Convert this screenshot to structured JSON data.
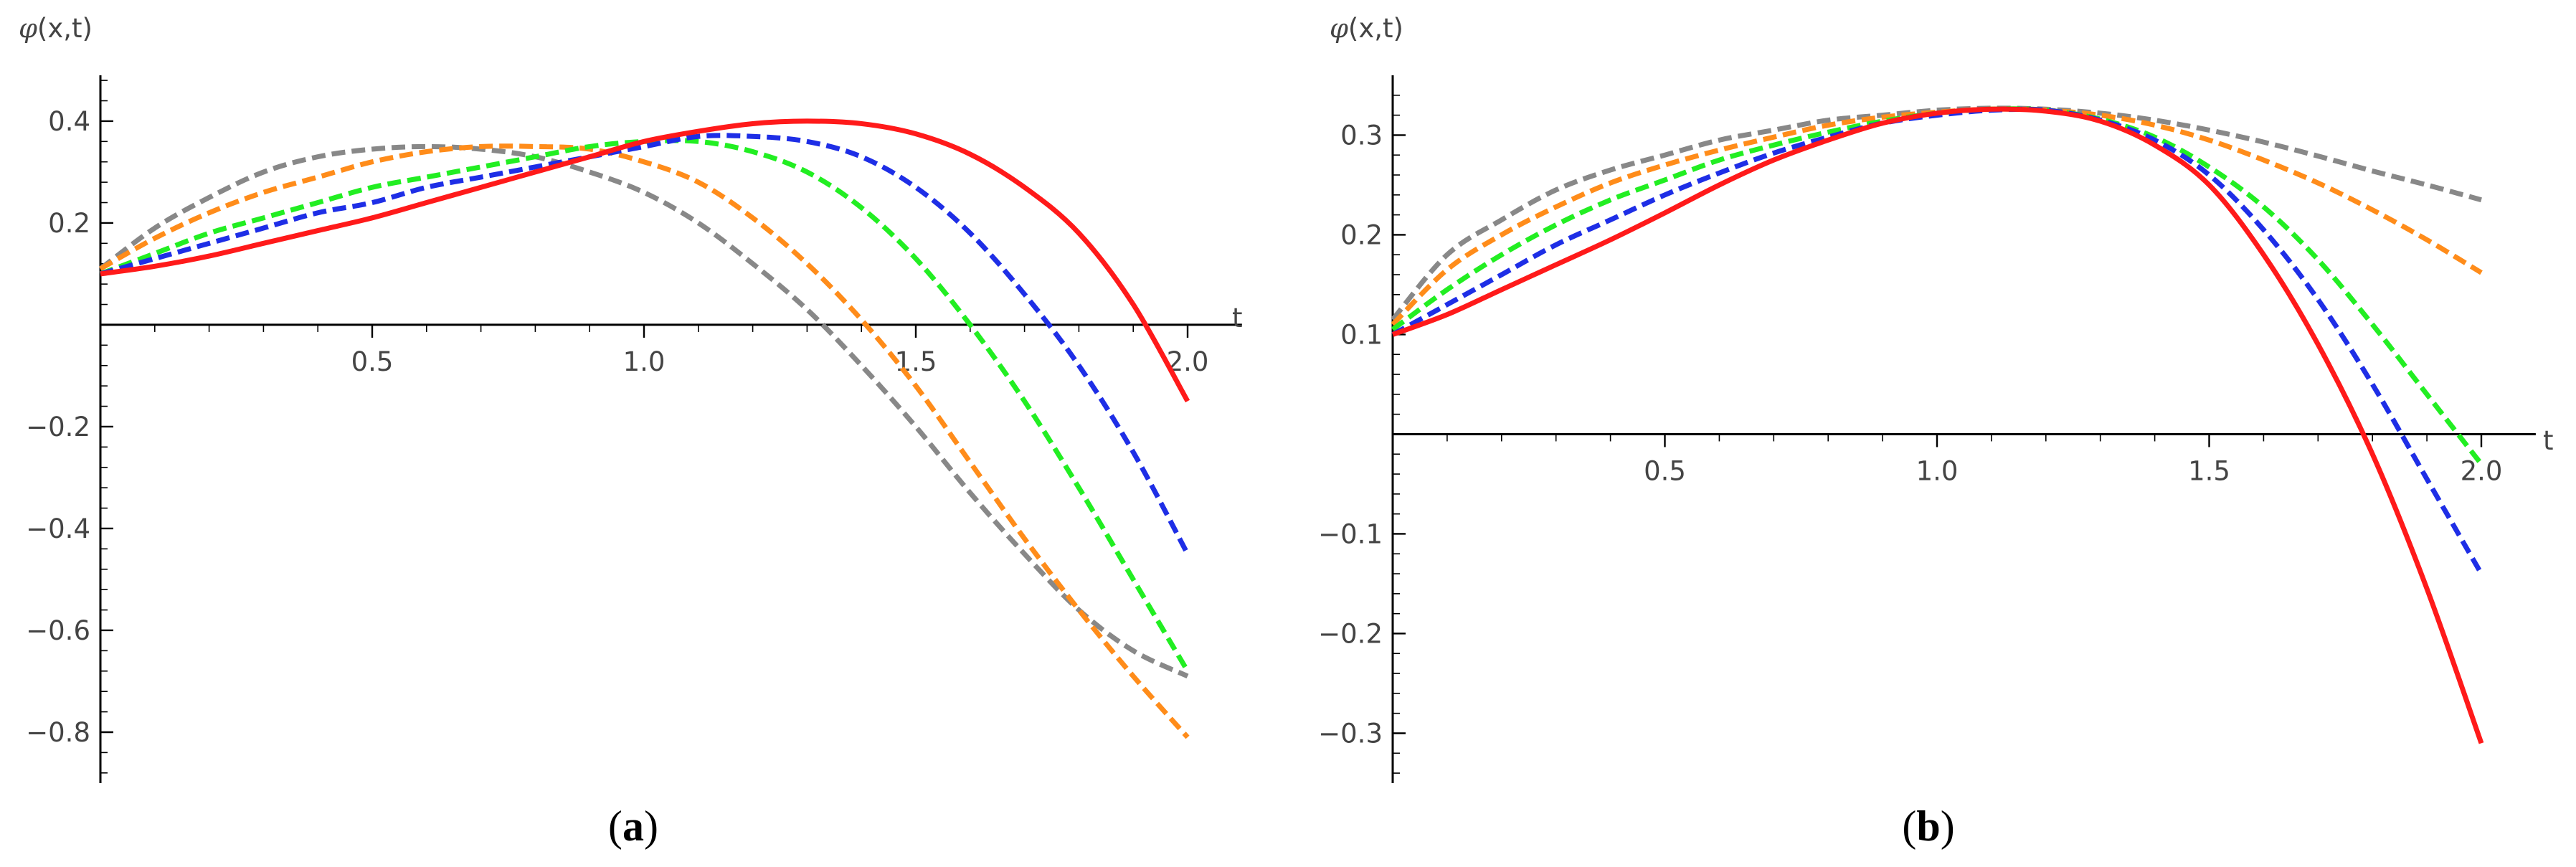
{
  "chart_data": [
    {
      "type": "line",
      "panel_label": "a",
      "xlabel": "t",
      "ylabel": "φ(x,t)",
      "xlim": [
        0,
        2.1
      ],
      "ylim": [
        -0.9,
        0.49
      ],
      "x_ticks": [
        "0.5",
        "1.0",
        "1.5",
        "2.0"
      ],
      "y_ticks": [
        "0.4",
        "0.2",
        "−0.2",
        "−0.4",
        "−0.6",
        "−0.8"
      ],
      "series": [
        {
          "color": "#888888",
          "style": "dashed",
          "x": [
            0,
            0.1,
            0.2,
            0.3,
            0.4,
            0.5,
            0.6,
            0.7,
            0.8,
            0.9,
            1.0,
            1.1,
            1.2,
            1.3,
            1.4,
            1.5,
            1.6,
            1.7,
            1.8,
            1.9,
            2.0
          ],
          "y": [
            0.11,
            0.19,
            0.25,
            0.3,
            0.33,
            0.345,
            0.35,
            0.345,
            0.33,
            0.3,
            0.26,
            0.2,
            0.12,
            0.03,
            -0.08,
            -0.2,
            -0.33,
            -0.45,
            -0.56,
            -0.64,
            -0.69
          ]
        },
        {
          "color": "#FF8C1A",
          "style": "dashed",
          "x": [
            0,
            0.1,
            0.2,
            0.3,
            0.4,
            0.5,
            0.6,
            0.7,
            0.8,
            0.9,
            1.0,
            1.1,
            1.2,
            1.3,
            1.4,
            1.5,
            1.6,
            1.7,
            1.8,
            1.9,
            2.0
          ],
          "y": [
            0.11,
            0.17,
            0.22,
            0.26,
            0.29,
            0.32,
            0.34,
            0.35,
            0.35,
            0.345,
            0.32,
            0.28,
            0.21,
            0.12,
            0.01,
            -0.12,
            -0.27,
            -0.42,
            -0.56,
            -0.69,
            -0.81
          ]
        },
        {
          "color": "#22EE22",
          "style": "dashed",
          "x": [
            0,
            0.1,
            0.2,
            0.3,
            0.4,
            0.5,
            0.6,
            0.7,
            0.8,
            0.9,
            1.0,
            1.1,
            1.2,
            1.3,
            1.4,
            1.5,
            1.6,
            1.7,
            1.8,
            1.9,
            2.0
          ],
          "y": [
            0.1,
            0.14,
            0.18,
            0.21,
            0.24,
            0.27,
            0.29,
            0.31,
            0.33,
            0.35,
            0.36,
            0.36,
            0.34,
            0.3,
            0.23,
            0.13,
            0.0,
            -0.15,
            -0.32,
            -0.5,
            -0.68
          ]
        },
        {
          "color": "#1E2EE6",
          "style": "dashed",
          "x": [
            0,
            0.1,
            0.2,
            0.3,
            0.4,
            0.5,
            0.6,
            0.7,
            0.8,
            0.9,
            1.0,
            1.1,
            1.2,
            1.3,
            1.4,
            1.5,
            1.6,
            1.7,
            1.8,
            1.9,
            2.0
          ],
          "y": [
            0.1,
            0.13,
            0.16,
            0.19,
            0.22,
            0.24,
            0.27,
            0.29,
            0.31,
            0.33,
            0.35,
            0.37,
            0.37,
            0.36,
            0.33,
            0.27,
            0.18,
            0.06,
            -0.08,
            -0.25,
            -0.45
          ]
        },
        {
          "color": "#FF1A1A",
          "style": "solid",
          "x": [
            0,
            0.1,
            0.2,
            0.3,
            0.4,
            0.5,
            0.6,
            0.7,
            0.8,
            0.9,
            1.0,
            1.1,
            1.2,
            1.3,
            1.4,
            1.5,
            1.6,
            1.7,
            1.8,
            1.9,
            2.0
          ],
          "y": [
            0.1,
            0.115,
            0.135,
            0.16,
            0.185,
            0.21,
            0.24,
            0.27,
            0.3,
            0.33,
            0.36,
            0.38,
            0.395,
            0.4,
            0.395,
            0.375,
            0.335,
            0.27,
            0.18,
            0.04,
            -0.15
          ]
        }
      ]
    },
    {
      "type": "line",
      "panel_label": "b",
      "xlabel": "t",
      "ylabel": "φ(x,t)",
      "xlim": [
        0,
        2.1
      ],
      "ylim": [
        -0.35,
        0.36
      ],
      "x_ticks": [
        "0.5",
        "1.0",
        "1.5",
        "2.0"
      ],
      "y_ticks": [
        "0.3",
        "0.2",
        "0.1",
        "−0.1",
        "−0.2",
        "−0.3"
      ],
      "series": [
        {
          "color": "#888888",
          "style": "dashed",
          "x": [
            0,
            0.1,
            0.2,
            0.3,
            0.4,
            0.5,
            0.6,
            0.7,
            0.8,
            0.9,
            1.0,
            1.1,
            1.2,
            1.3,
            1.4,
            1.5,
            1.6,
            1.7,
            1.8,
            1.9,
            2.0
          ],
          "y": [
            0.115,
            0.18,
            0.215,
            0.245,
            0.265,
            0.28,
            0.295,
            0.305,
            0.315,
            0.32,
            0.325,
            0.327,
            0.326,
            0.322,
            0.315,
            0.305,
            0.293,
            0.279,
            0.264,
            0.25,
            0.235
          ]
        },
        {
          "color": "#FF8C1A",
          "style": "dashed",
          "x": [
            0,
            0.1,
            0.2,
            0.3,
            0.4,
            0.5,
            0.6,
            0.7,
            0.8,
            0.9,
            1.0,
            1.1,
            1.2,
            1.3,
            1.4,
            1.5,
            1.6,
            1.7,
            1.8,
            1.9,
            2.0
          ],
          "y": [
            0.11,
            0.165,
            0.2,
            0.228,
            0.252,
            0.27,
            0.285,
            0.298,
            0.31,
            0.318,
            0.323,
            0.326,
            0.325,
            0.32,
            0.31,
            0.295,
            0.275,
            0.252,
            0.225,
            0.195,
            0.162
          ]
        },
        {
          "color": "#22EE22",
          "style": "dashed",
          "x": [
            0,
            0.1,
            0.2,
            0.3,
            0.4,
            0.5,
            0.6,
            0.7,
            0.8,
            0.9,
            1.0,
            1.1,
            1.2,
            1.3,
            1.4,
            1.5,
            1.6,
            1.7,
            1.8,
            1.9,
            2.0
          ],
          "y": [
            0.105,
            0.145,
            0.18,
            0.21,
            0.235,
            0.255,
            0.275,
            0.29,
            0.303,
            0.314,
            0.322,
            0.326,
            0.325,
            0.316,
            0.298,
            0.268,
            0.228,
            0.175,
            0.11,
            0.04,
            -0.03
          ]
        },
        {
          "color": "#1E2EE6",
          "style": "dashed",
          "x": [
            0,
            0.1,
            0.2,
            0.3,
            0.4,
            0.5,
            0.6,
            0.7,
            0.8,
            0.9,
            1.0,
            1.1,
            1.2,
            1.3,
            1.4,
            1.5,
            1.6,
            1.7,
            1.8,
            1.9,
            2.0
          ],
          "y": [
            0.1,
            0.13,
            0.16,
            0.19,
            0.215,
            0.24,
            0.262,
            0.282,
            0.298,
            0.312,
            0.32,
            0.325,
            0.325,
            0.315,
            0.295,
            0.26,
            0.205,
            0.135,
            0.05,
            -0.045,
            -0.14
          ]
        },
        {
          "color": "#FF1A1A",
          "style": "solid",
          "x": [
            0,
            0.1,
            0.2,
            0.3,
            0.4,
            0.5,
            0.6,
            0.7,
            0.8,
            0.9,
            1.0,
            1.1,
            1.2,
            1.3,
            1.4,
            1.5,
            1.6,
            1.7,
            1.8,
            1.9,
            2.0
          ],
          "y": [
            0.1,
            0.12,
            0.145,
            0.17,
            0.195,
            0.222,
            0.25,
            0.275,
            0.295,
            0.312,
            0.322,
            0.326,
            0.324,
            0.314,
            0.29,
            0.25,
            0.18,
            0.09,
            -0.02,
            -0.155,
            -0.31
          ]
        }
      ]
    }
  ]
}
